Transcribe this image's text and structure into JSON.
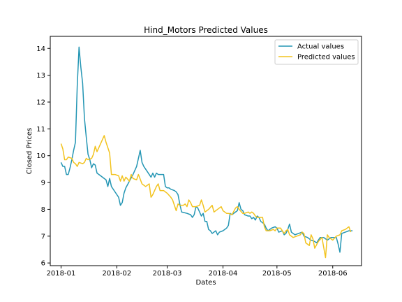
{
  "chart_data": {
    "type": "line",
    "title": "Hind_Motors Predicted Values",
    "xlabel": "Dates",
    "ylabel": "Closed Prices",
    "xlim": [
      "2017-12-26",
      "2018-06-17"
    ],
    "ylim": [
      5.9,
      14.45
    ],
    "x_ticks": [
      {
        "date": "2018-01-01",
        "label": "2018-01"
      },
      {
        "date": "2018-02-01",
        "label": "2018-02"
      },
      {
        "date": "2018-03-01",
        "label": "2018-03"
      },
      {
        "date": "2018-04-01",
        "label": "2018-04"
      },
      {
        "date": "2018-05-01",
        "label": "2018-05"
      },
      {
        "date": "2018-06-01",
        "label": "2018-06"
      }
    ],
    "y_ticks": [
      6,
      7,
      8,
      9,
      10,
      11,
      12,
      13,
      14
    ],
    "legend_position": "top-right",
    "series": [
      {
        "name": "Actual values",
        "color": "#2496b4",
        "points": [
          [
            "2018-01-01",
            9.75
          ],
          [
            "2018-01-02",
            9.6
          ],
          [
            "2018-01-03",
            9.6
          ],
          [
            "2018-01-04",
            9.3
          ],
          [
            "2018-01-05",
            9.3
          ],
          [
            "2018-01-06",
            9.55
          ],
          [
            "2018-01-07",
            9.85
          ],
          [
            "2018-01-08",
            10.2
          ],
          [
            "2018-01-09",
            10.5
          ],
          [
            "2018-01-10",
            12.6
          ],
          [
            "2018-01-11",
            14.05
          ],
          [
            "2018-01-12",
            13.3
          ],
          [
            "2018-01-13",
            12.7
          ],
          [
            "2018-01-14",
            11.4
          ],
          [
            "2018-01-15",
            10.7
          ],
          [
            "2018-01-16",
            10.05
          ],
          [
            "2018-01-17",
            9.85
          ],
          [
            "2018-01-18",
            9.55
          ],
          [
            "2018-01-19",
            9.7
          ],
          [
            "2018-01-20",
            9.65
          ],
          [
            "2018-01-21",
            9.35
          ],
          [
            "2018-01-24",
            9.2
          ],
          [
            "2018-01-26",
            9.1
          ],
          [
            "2018-01-27",
            8.85
          ],
          [
            "2018-01-28",
            9.15
          ],
          [
            "2018-01-29",
            8.85
          ],
          [
            "2018-01-31",
            8.65
          ],
          [
            "2018-02-02",
            8.45
          ],
          [
            "2018-02-03",
            8.15
          ],
          [
            "2018-02-04",
            8.25
          ],
          [
            "2018-02-05",
            8.6
          ],
          [
            "2018-02-06",
            8.8
          ],
          [
            "2018-02-08",
            9.05
          ],
          [
            "2018-02-10",
            9.3
          ],
          [
            "2018-02-11",
            9.45
          ],
          [
            "2018-02-12",
            9.6
          ],
          [
            "2018-02-14",
            10.2
          ],
          [
            "2018-02-15",
            9.75
          ],
          [
            "2018-02-16",
            9.6
          ],
          [
            "2018-02-18",
            9.4
          ],
          [
            "2018-02-20",
            9.2
          ],
          [
            "2018-02-21",
            9.35
          ],
          [
            "2018-02-22",
            9.2
          ],
          [
            "2018-02-23",
            9.35
          ],
          [
            "2018-02-24",
            9.3
          ],
          [
            "2018-02-27",
            9.3
          ],
          [
            "2018-02-28",
            8.85
          ],
          [
            "2018-03-01",
            8.8
          ],
          [
            "2018-03-02",
            8.8
          ],
          [
            "2018-03-03",
            8.75
          ],
          [
            "2018-03-05",
            8.7
          ],
          [
            "2018-03-06",
            8.65
          ],
          [
            "2018-03-07",
            8.55
          ],
          [
            "2018-03-08",
            8.2
          ],
          [
            "2018-03-09",
            7.9
          ],
          [
            "2018-03-12",
            7.85
          ],
          [
            "2018-03-14",
            7.8
          ],
          [
            "2018-03-15",
            7.7
          ],
          [
            "2018-03-16",
            7.8
          ],
          [
            "2018-03-17",
            8.1
          ],
          [
            "2018-03-18",
            8.05
          ],
          [
            "2018-03-19",
            7.9
          ],
          [
            "2018-03-20",
            7.75
          ],
          [
            "2018-03-21",
            7.85
          ],
          [
            "2018-03-22",
            7.55
          ],
          [
            "2018-03-23",
            7.55
          ],
          [
            "2018-03-24",
            7.25
          ],
          [
            "2018-03-25",
            7.2
          ],
          [
            "2018-03-26",
            7.1
          ],
          [
            "2018-03-28",
            7.2
          ],
          [
            "2018-03-29",
            7.05
          ],
          [
            "2018-03-30",
            7.15
          ],
          [
            "2018-04-01",
            7.2
          ],
          [
            "2018-04-03",
            7.3
          ],
          [
            "2018-04-04",
            7.4
          ],
          [
            "2018-04-05",
            7.85
          ],
          [
            "2018-04-06",
            7.8
          ],
          [
            "2018-04-08",
            7.9
          ],
          [
            "2018-04-09",
            7.95
          ],
          [
            "2018-04-10",
            8.25
          ],
          [
            "2018-04-11",
            8.0
          ],
          [
            "2018-04-12",
            7.95
          ],
          [
            "2018-04-13",
            7.8
          ],
          [
            "2018-04-15",
            7.75
          ],
          [
            "2018-04-16",
            7.75
          ],
          [
            "2018-04-17",
            7.65
          ],
          [
            "2018-04-18",
            7.7
          ],
          [
            "2018-04-19",
            7.6
          ],
          [
            "2018-04-20",
            7.75
          ],
          [
            "2018-04-21",
            7.7
          ],
          [
            "2018-04-22",
            7.55
          ],
          [
            "2018-04-24",
            7.45
          ],
          [
            "2018-04-25",
            7.3
          ],
          [
            "2018-04-26",
            7.2
          ],
          [
            "2018-04-28",
            7.3
          ],
          [
            "2018-04-30",
            7.35
          ],
          [
            "2018-05-01",
            7.3
          ],
          [
            "2018-05-02",
            7.15
          ],
          [
            "2018-05-04",
            7.2
          ],
          [
            "2018-05-05",
            7.05
          ],
          [
            "2018-05-06",
            7.1
          ],
          [
            "2018-05-07",
            7.25
          ],
          [
            "2018-05-08",
            7.45
          ],
          [
            "2018-05-09",
            7.15
          ],
          [
            "2018-05-11",
            7.05
          ],
          [
            "2018-05-13",
            7.1
          ],
          [
            "2018-05-15",
            7.15
          ],
          [
            "2018-05-16",
            7.0
          ],
          [
            "2018-05-18",
            6.95
          ],
          [
            "2018-05-20",
            6.85
          ],
          [
            "2018-05-22",
            6.8
          ],
          [
            "2018-05-23",
            6.75
          ],
          [
            "2018-05-24",
            6.85
          ],
          [
            "2018-05-25",
            6.95
          ],
          [
            "2018-05-27",
            6.95
          ],
          [
            "2018-05-28",
            6.9
          ],
          [
            "2018-05-29",
            6.85
          ],
          [
            "2018-05-30",
            6.9
          ],
          [
            "2018-05-31",
            6.95
          ],
          [
            "2018-06-01",
            6.95
          ],
          [
            "2018-06-03",
            6.95
          ],
          [
            "2018-06-04",
            6.7
          ],
          [
            "2018-06-05",
            6.4
          ],
          [
            "2018-06-06",
            7.1
          ],
          [
            "2018-06-08",
            7.15
          ],
          [
            "2018-06-10",
            7.2
          ],
          [
            "2018-06-12",
            7.2
          ]
        ]
      },
      {
        "name": "Predicted values",
        "color": "#f2c31f",
        "points": [
          [
            "2018-01-01",
            10.45
          ],
          [
            "2018-01-02",
            10.25
          ],
          [
            "2018-01-03",
            9.85
          ],
          [
            "2018-01-04",
            9.85
          ],
          [
            "2018-01-05",
            9.95
          ],
          [
            "2018-01-07",
            9.9
          ],
          [
            "2018-01-08",
            9.75
          ],
          [
            "2018-01-09",
            9.7
          ],
          [
            "2018-01-10",
            9.6
          ],
          [
            "2018-01-11",
            9.75
          ],
          [
            "2018-01-13",
            9.7
          ],
          [
            "2018-01-14",
            9.75
          ],
          [
            "2018-01-15",
            9.9
          ],
          [
            "2018-01-16",
            9.85
          ],
          [
            "2018-01-18",
            9.9
          ],
          [
            "2018-01-19",
            10.05
          ],
          [
            "2018-01-20",
            10.35
          ],
          [
            "2018-01-21",
            10.15
          ],
          [
            "2018-01-23",
            10.45
          ],
          [
            "2018-01-25",
            10.75
          ],
          [
            "2018-01-26",
            10.5
          ],
          [
            "2018-01-28",
            10.1
          ],
          [
            "2018-01-29",
            9.3
          ],
          [
            "2018-01-31",
            9.3
          ],
          [
            "2018-02-02",
            9.25
          ],
          [
            "2018-02-03",
            9.05
          ],
          [
            "2018-02-04",
            9.25
          ],
          [
            "2018-02-05",
            9.05
          ],
          [
            "2018-02-06",
            9.2
          ],
          [
            "2018-02-08",
            9.05
          ],
          [
            "2018-02-09",
            9.3
          ],
          [
            "2018-02-10",
            9.15
          ],
          [
            "2018-02-12",
            9.1
          ],
          [
            "2018-02-13",
            9.3
          ],
          [
            "2018-02-15",
            8.95
          ],
          [
            "2018-02-17",
            8.85
          ],
          [
            "2018-02-19",
            8.95
          ],
          [
            "2018-02-20",
            8.45
          ],
          [
            "2018-02-21",
            8.55
          ],
          [
            "2018-02-23",
            8.85
          ],
          [
            "2018-02-24",
            8.95
          ],
          [
            "2018-02-25",
            8.7
          ],
          [
            "2018-02-27",
            8.7
          ],
          [
            "2018-02-28",
            8.65
          ],
          [
            "2018-03-01",
            8.6
          ],
          [
            "2018-03-03",
            8.45
          ],
          [
            "2018-03-04",
            8.35
          ],
          [
            "2018-03-06",
            7.95
          ],
          [
            "2018-03-07",
            8.2
          ],
          [
            "2018-03-08",
            8.15
          ],
          [
            "2018-03-10",
            8.15
          ],
          [
            "2018-03-11",
            8.2
          ],
          [
            "2018-03-12",
            8.1
          ],
          [
            "2018-03-13",
            8.35
          ],
          [
            "2018-03-14",
            8.25
          ],
          [
            "2018-03-15",
            8.1
          ],
          [
            "2018-03-17",
            8.1
          ],
          [
            "2018-03-19",
            8.15
          ],
          [
            "2018-03-20",
            8.35
          ],
          [
            "2018-03-21",
            8.15
          ],
          [
            "2018-03-22",
            7.9
          ],
          [
            "2018-03-24",
            8.0
          ],
          [
            "2018-03-26",
            8.15
          ],
          [
            "2018-03-27",
            7.9
          ],
          [
            "2018-03-29",
            8.0
          ],
          [
            "2018-03-31",
            8.1
          ],
          [
            "2018-04-01",
            7.95
          ],
          [
            "2018-04-03",
            7.85
          ],
          [
            "2018-04-04",
            7.85
          ],
          [
            "2018-04-06",
            7.8
          ],
          [
            "2018-04-08",
            8.05
          ],
          [
            "2018-04-09",
            8.1
          ],
          [
            "2018-04-10",
            8.0
          ],
          [
            "2018-04-12",
            7.85
          ],
          [
            "2018-04-13",
            7.85
          ],
          [
            "2018-04-15",
            7.9
          ],
          [
            "2018-04-16",
            7.85
          ],
          [
            "2018-04-17",
            7.9
          ],
          [
            "2018-04-18",
            7.85
          ],
          [
            "2018-04-19",
            7.75
          ],
          [
            "2018-04-20",
            7.7
          ],
          [
            "2018-04-22",
            7.7
          ],
          [
            "2018-04-23",
            7.7
          ],
          [
            "2018-04-24",
            7.35
          ],
          [
            "2018-04-25",
            7.2
          ],
          [
            "2018-04-27",
            7.2
          ],
          [
            "2018-04-29",
            7.25
          ],
          [
            "2018-04-30",
            7.2
          ],
          [
            "2018-05-01",
            7.3
          ],
          [
            "2018-05-03",
            7.3
          ],
          [
            "2018-05-05",
            7.1
          ],
          [
            "2018-05-06",
            7.2
          ],
          [
            "2018-05-07",
            7.25
          ],
          [
            "2018-05-08",
            7.05
          ],
          [
            "2018-05-10",
            6.95
          ],
          [
            "2018-05-12",
            7.0
          ],
          [
            "2018-05-14",
            7.05
          ],
          [
            "2018-05-15",
            7.15
          ],
          [
            "2018-05-16",
            7.1
          ],
          [
            "2018-05-17",
            6.75
          ],
          [
            "2018-05-19",
            6.65
          ],
          [
            "2018-05-20",
            7.05
          ],
          [
            "2018-05-21",
            6.9
          ],
          [
            "2018-05-22",
            6.55
          ],
          [
            "2018-05-24",
            6.8
          ],
          [
            "2018-05-26",
            6.95
          ],
          [
            "2018-05-28",
            6.2
          ],
          [
            "2018-05-29",
            7.05
          ],
          [
            "2018-05-30",
            6.95
          ],
          [
            "2018-06-01",
            6.85
          ],
          [
            "2018-06-03",
            7.0
          ],
          [
            "2018-06-05",
            7.05
          ],
          [
            "2018-06-06",
            7.2
          ],
          [
            "2018-06-08",
            7.25
          ],
          [
            "2018-06-10",
            7.35
          ],
          [
            "2018-06-11",
            7.15
          ]
        ]
      }
    ]
  }
}
